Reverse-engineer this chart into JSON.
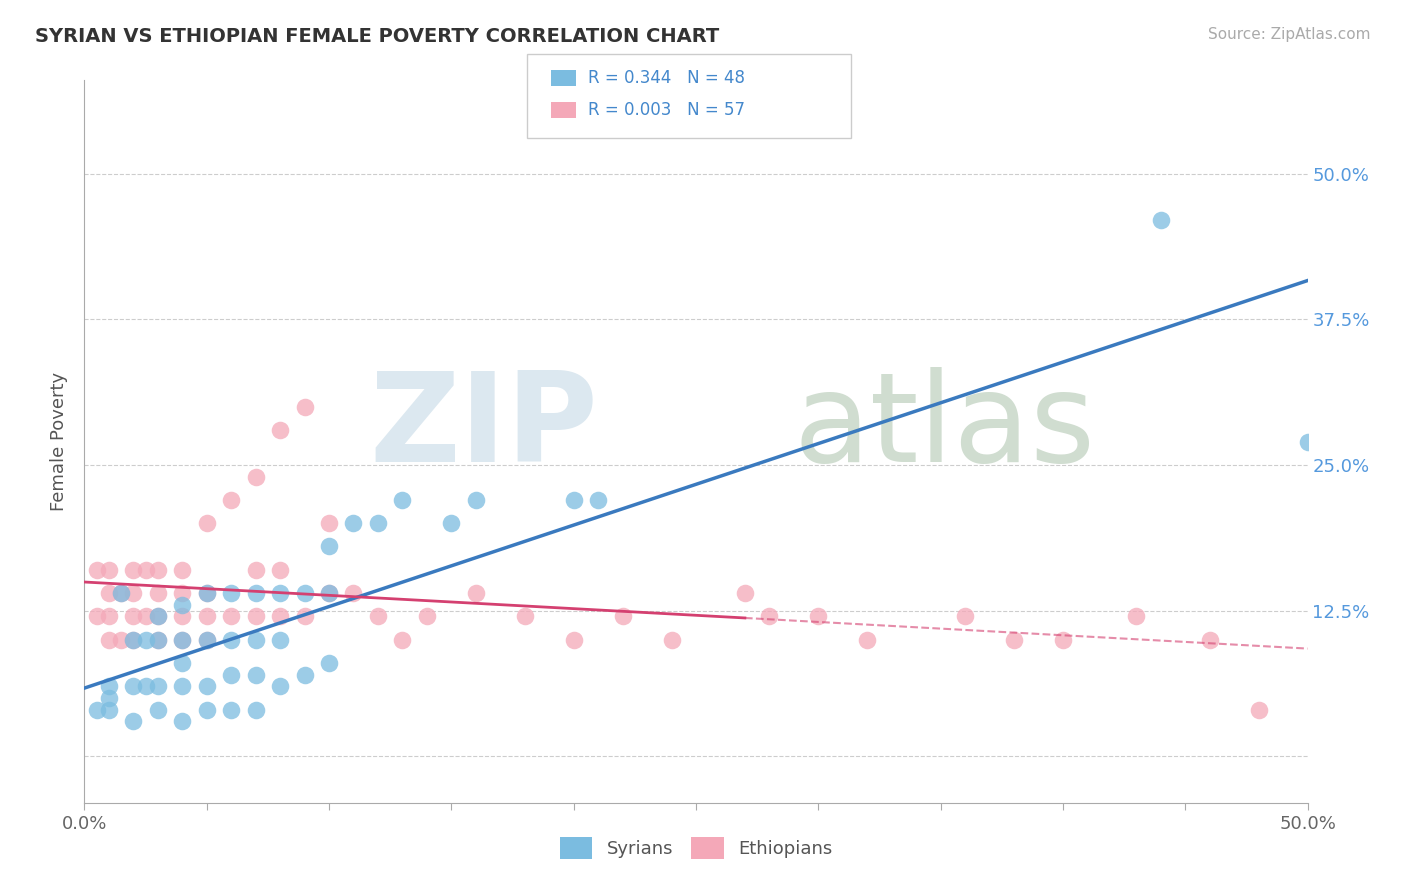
{
  "title": "SYRIAN VS ETHIOPIAN FEMALE POVERTY CORRELATION CHART",
  "source": "Source: ZipAtlas.com",
  "ylabel": "Female Poverty",
  "xlim": [
    0.0,
    0.5
  ],
  "ylim": [
    -0.04,
    0.58
  ],
  "yticks": [
    0.0,
    0.125,
    0.25,
    0.375,
    0.5
  ],
  "ytick_labels": [
    "",
    "12.5%",
    "25.0%",
    "37.5%",
    "50.0%"
  ],
  "legend_R_syrian": "0.344",
  "legend_N_syrian": "48",
  "legend_R_ethiopian": "0.003",
  "legend_N_ethiopian": "57",
  "syrian_color": "#7bbce0",
  "ethiopian_color": "#f4a8b8",
  "syrian_line_color": "#3a7abf",
  "ethiopian_line_color": "#d44070",
  "background_color": "#ffffff",
  "grid_color": "#c8c8c8",
  "syrian_x": [
    0.005,
    0.01,
    0.01,
    0.01,
    0.015,
    0.02,
    0.02,
    0.02,
    0.025,
    0.025,
    0.03,
    0.03,
    0.03,
    0.03,
    0.04,
    0.04,
    0.04,
    0.04,
    0.04,
    0.05,
    0.05,
    0.05,
    0.05,
    0.06,
    0.06,
    0.06,
    0.06,
    0.07,
    0.07,
    0.07,
    0.07,
    0.08,
    0.08,
    0.08,
    0.09,
    0.09,
    0.1,
    0.1,
    0.1,
    0.11,
    0.12,
    0.13,
    0.15,
    0.16,
    0.2,
    0.21,
    0.44,
    0.5
  ],
  "syrian_y": [
    0.04,
    0.04,
    0.05,
    0.06,
    0.14,
    0.03,
    0.06,
    0.1,
    0.06,
    0.1,
    0.04,
    0.06,
    0.1,
    0.12,
    0.03,
    0.06,
    0.08,
    0.1,
    0.13,
    0.04,
    0.06,
    0.1,
    0.14,
    0.04,
    0.07,
    0.1,
    0.14,
    0.04,
    0.07,
    0.1,
    0.14,
    0.06,
    0.1,
    0.14,
    0.07,
    0.14,
    0.08,
    0.14,
    0.18,
    0.2,
    0.2,
    0.22,
    0.2,
    0.22,
    0.22,
    0.22,
    0.46,
    0.27
  ],
  "ethiopian_x": [
    0.005,
    0.005,
    0.01,
    0.01,
    0.01,
    0.01,
    0.015,
    0.015,
    0.02,
    0.02,
    0.02,
    0.02,
    0.025,
    0.025,
    0.03,
    0.03,
    0.03,
    0.03,
    0.04,
    0.04,
    0.04,
    0.04,
    0.05,
    0.05,
    0.05,
    0.05,
    0.06,
    0.06,
    0.07,
    0.07,
    0.07,
    0.08,
    0.08,
    0.08,
    0.09,
    0.09,
    0.1,
    0.1,
    0.11,
    0.12,
    0.13,
    0.14,
    0.16,
    0.18,
    0.2,
    0.22,
    0.24,
    0.27,
    0.28,
    0.3,
    0.32,
    0.36,
    0.38,
    0.4,
    0.43,
    0.46,
    0.48
  ],
  "ethiopian_y": [
    0.12,
    0.16,
    0.1,
    0.12,
    0.14,
    0.16,
    0.1,
    0.14,
    0.1,
    0.12,
    0.14,
    0.16,
    0.12,
    0.16,
    0.1,
    0.12,
    0.14,
    0.16,
    0.1,
    0.12,
    0.14,
    0.16,
    0.1,
    0.12,
    0.14,
    0.2,
    0.12,
    0.22,
    0.12,
    0.16,
    0.24,
    0.12,
    0.16,
    0.28,
    0.12,
    0.3,
    0.14,
    0.2,
    0.14,
    0.12,
    0.1,
    0.12,
    0.14,
    0.12,
    0.1,
    0.12,
    0.1,
    0.14,
    0.12,
    0.12,
    0.1,
    0.12,
    0.1,
    0.1,
    0.12,
    0.1,
    0.04
  ]
}
